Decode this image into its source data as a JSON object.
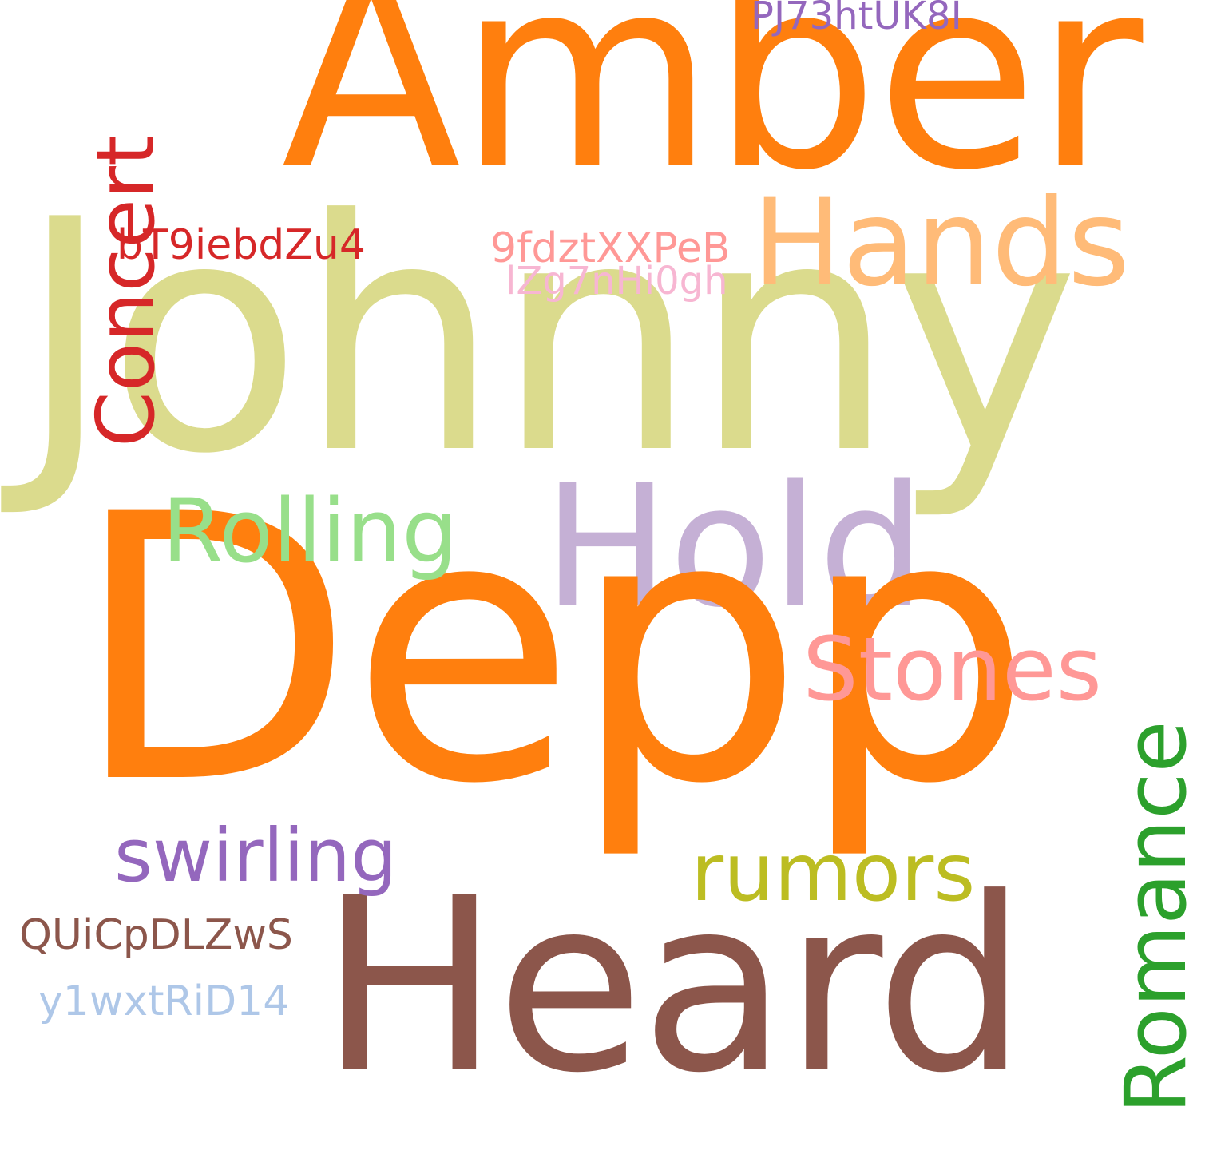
{
  "words": {
    "amber": {
      "text": "Amber",
      "color": "#ff7f0e"
    },
    "johnny": {
      "text": "Johnny",
      "color": "#dbdb8d"
    },
    "depp": {
      "text": "Depp",
      "color": "#ff7f0e"
    },
    "heard": {
      "text": "Heard",
      "color": "#8c564b"
    },
    "hands": {
      "text": "Hands",
      "color": "#ffbb78"
    },
    "hold": {
      "text": "Hold",
      "color": "#c5b0d5"
    },
    "stones": {
      "text": "Stones",
      "color": "#ff9896"
    },
    "rolling": {
      "text": "Rolling",
      "color": "#98df8a"
    },
    "swirling": {
      "text": "swirling",
      "color": "#9467bd"
    },
    "rumors": {
      "text": "rumors",
      "color": "#bcbd22"
    },
    "concert": {
      "text": "Concert",
      "color": "#d62728"
    },
    "romance": {
      "text": "Romance",
      "color": "#2ca02c"
    },
    "qui": {
      "text": "QUiCpDLZwS",
      "color": "#8c564b"
    },
    "y1w": {
      "text": "y1wxtRiD14",
      "color": "#aec7e8"
    },
    "bt9": {
      "text": "bT9iebdZu4",
      "color": "#d62728"
    },
    "fdz": {
      "text": "9fdztXXPeB",
      "color": "#ff9896"
    },
    "lzg": {
      "text": "lZg7nHi0gh",
      "color": "#f7b6d2"
    },
    "pj7": {
      "text": "PJ73htUK8I",
      "color": "#9467bd"
    }
  }
}
